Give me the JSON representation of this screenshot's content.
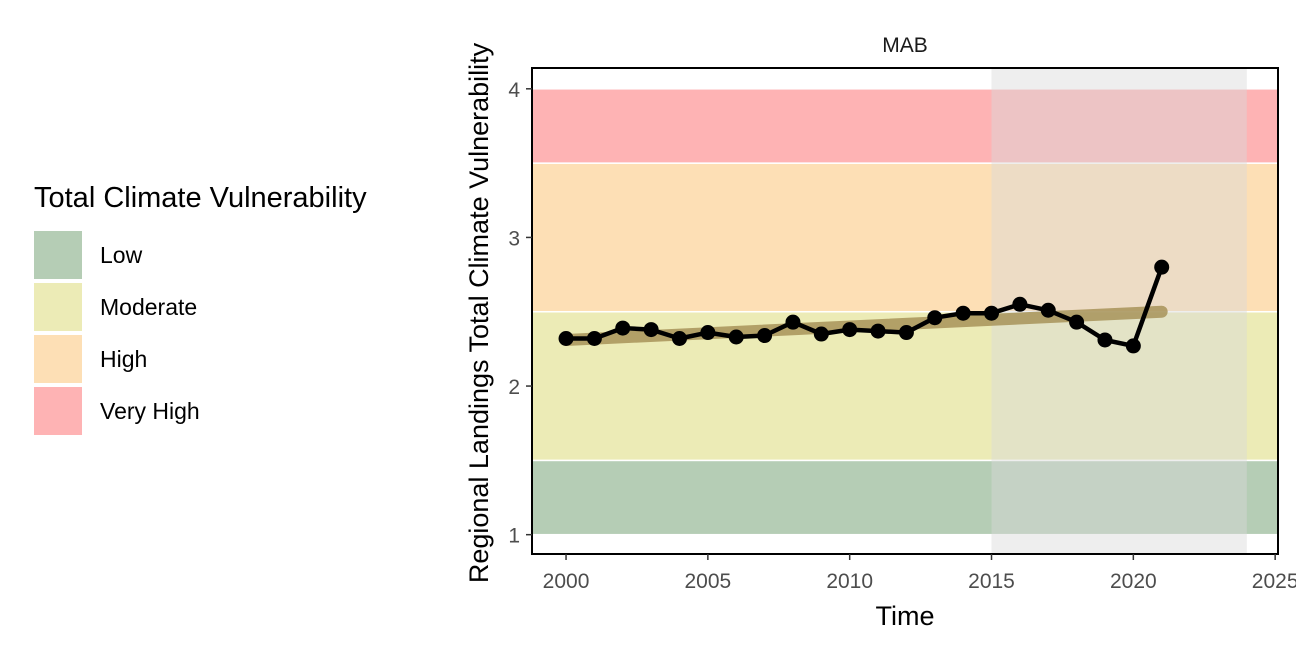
{
  "chart_data": {
    "type": "line",
    "title": "MAB",
    "xlabel": "Time",
    "ylabel": "Regional Landings Total Climate Vulnerability",
    "xlim": [
      1998.8,
      2025.1
    ],
    "ylim": [
      0.87,
      4.14
    ],
    "x_ticks": [
      2000,
      2005,
      2010,
      2015,
      2020,
      2025
    ],
    "y_ticks": [
      1,
      2,
      3,
      4
    ],
    "grid": false,
    "legend": {
      "title": "Total Climate Vulnerability",
      "position": "left",
      "items": [
        {
          "label": "Low",
          "color": "#b5cdb5"
        },
        {
          "label": "Moderate",
          "color": "#ecebb6"
        },
        {
          "label": "High",
          "color": "#fddfb5"
        },
        {
          "label": "Very High",
          "color": "#feb3b4"
        }
      ]
    },
    "bands": [
      {
        "category": "Low",
        "ymin": 1.0,
        "ymax": 1.5,
        "color": "#b5cdb5"
      },
      {
        "category": "Moderate",
        "ymin": 1.5,
        "ymax": 2.5,
        "color": "#ecebb6"
      },
      {
        "category": "High",
        "ymin": 2.5,
        "ymax": 3.5,
        "color": "#fddfb5"
      },
      {
        "category": "Very High",
        "ymin": 3.5,
        "ymax": 4.0,
        "color": "#feb3b4"
      }
    ],
    "highlight_period": {
      "xmin": 2015,
      "xmax": 2024,
      "color": "#d9d9d9"
    },
    "trend": {
      "x": [
        2000,
        2021
      ],
      "y": [
        2.31,
        2.5
      ],
      "color": "#a8945a"
    },
    "series": [
      {
        "color": "#000000",
        "x": [
          2000,
          2001,
          2002,
          2003,
          2004,
          2005,
          2006,
          2007,
          2008,
          2009,
          2010,
          2011,
          2012,
          2013,
          2014,
          2015,
          2016,
          2017,
          2018,
          2019,
          2020,
          2021
        ],
        "y": [
          2.32,
          2.32,
          2.39,
          2.38,
          2.32,
          2.36,
          2.33,
          2.34,
          2.43,
          2.35,
          2.38,
          2.37,
          2.36,
          2.46,
          2.49,
          2.49,
          2.55,
          2.51,
          2.43,
          2.31,
          2.27,
          2.8
        ]
      }
    ]
  }
}
